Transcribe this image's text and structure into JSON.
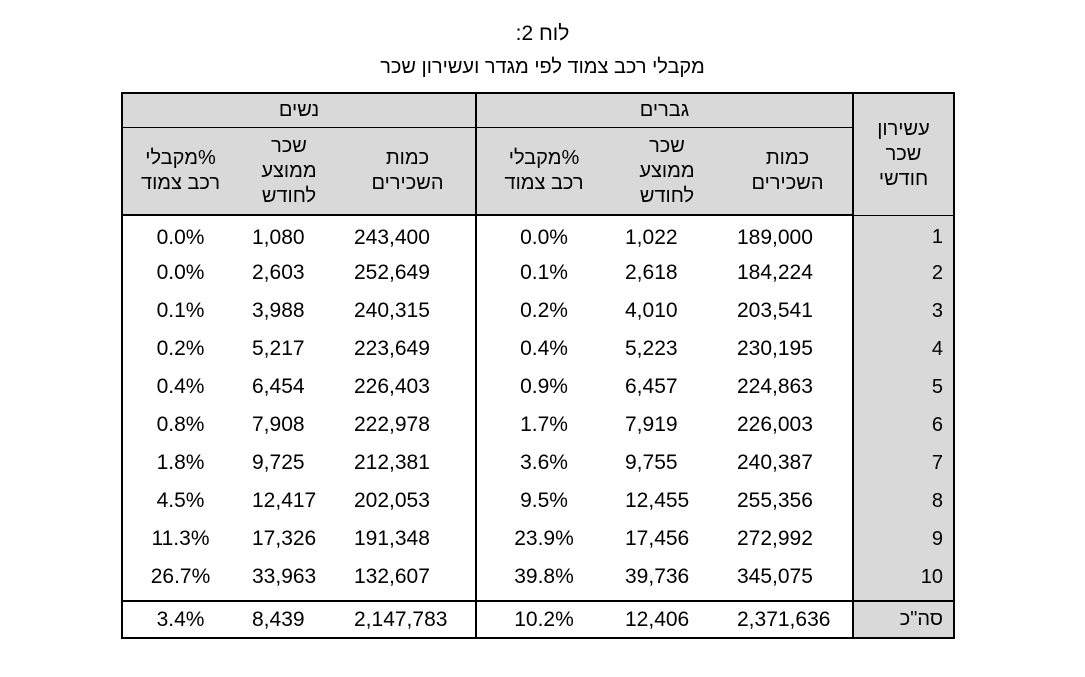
{
  "title": "לוח 2:",
  "subtitle": "מקבלי רכב צמוד לפי מגדר ועשירון שכר",
  "table": {
    "decile_header": [
      "עשירון",
      "שכר",
      "חודשי"
    ],
    "groups": [
      "גברים",
      "נשים"
    ],
    "col_count": [
      "כמות",
      "השכירים"
    ],
    "col_avg": [
      "שכר",
      "ממוצע",
      "לחודש"
    ],
    "col_pct": [
      "%מקבלי",
      "רכב צמוד"
    ],
    "header_bg": "#d9d9d9",
    "rows": [
      {
        "decile": "1",
        "men_count": "189,000",
        "men_avg": "1,022",
        "men_pct": "0.0%",
        "women_count": "243,400",
        "women_avg": "1,080",
        "women_pct": "0.0%"
      },
      {
        "decile": "2",
        "men_count": "184,224",
        "men_avg": "2,618",
        "men_pct": "0.1%",
        "women_count": "252,649",
        "women_avg": "2,603",
        "women_pct": "0.0%"
      },
      {
        "decile": "3",
        "men_count": "203,541",
        "men_avg": "4,010",
        "men_pct": "0.2%",
        "women_count": "240,315",
        "women_avg": "3,988",
        "women_pct": "0.1%"
      },
      {
        "decile": "4",
        "men_count": "230,195",
        "men_avg": "5,223",
        "men_pct": "0.4%",
        "women_count": "223,649",
        "women_avg": "5,217",
        "women_pct": "0.2%"
      },
      {
        "decile": "5",
        "men_count": "224,863",
        "men_avg": "6,457",
        "men_pct": "0.9%",
        "women_count": "226,403",
        "women_avg": "6,454",
        "women_pct": "0.4%"
      },
      {
        "decile": "6",
        "men_count": "226,003",
        "men_avg": "7,919",
        "men_pct": "1.7%",
        "women_count": "222,978",
        "women_avg": "7,908",
        "women_pct": "0.8%"
      },
      {
        "decile": "7",
        "men_count": "240,387",
        "men_avg": "9,755",
        "men_pct": "3.6%",
        "women_count": "212,381",
        "women_avg": "9,725",
        "women_pct": "1.8%"
      },
      {
        "decile": "8",
        "men_count": "255,356",
        "men_avg": "12,455",
        "men_pct": "9.5%",
        "women_count": "202,053",
        "women_avg": "12,417",
        "women_pct": "4.5%"
      },
      {
        "decile": "9",
        "men_count": "272,992",
        "men_avg": "17,456",
        "men_pct": "23.9%",
        "women_count": "191,348",
        "women_avg": "17,326",
        "women_pct": "11.3%"
      },
      {
        "decile": "10",
        "men_count": "345,075",
        "men_avg": "39,736",
        "men_pct": "39.8%",
        "women_count": "132,607",
        "women_avg": "33,963",
        "women_pct": "26.7%"
      }
    ],
    "total": {
      "decile": "סה\"כ",
      "men_count": "2,371,636",
      "men_avg": "12,406",
      "men_pct": "10.2%",
      "women_count": "2,147,783",
      "women_avg": "8,439",
      "women_pct": "3.4%"
    }
  }
}
